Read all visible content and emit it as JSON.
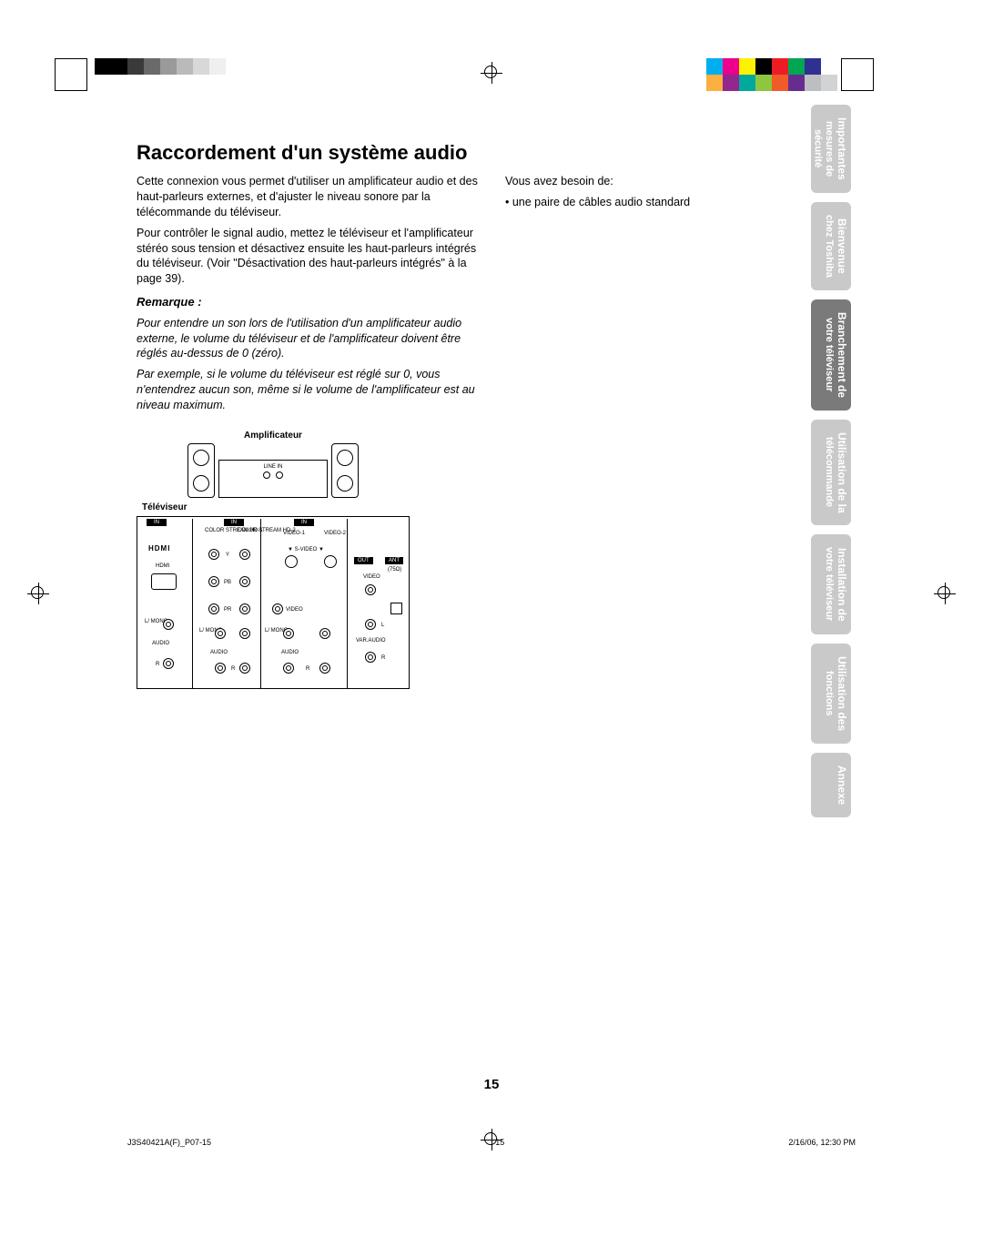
{
  "registration": {
    "gray_bars": [
      "#000000",
      "#000000",
      "#3a3a3a",
      "#6a6a6a",
      "#9a9a9a",
      "#bababa",
      "#d8d8d8",
      "#efefef",
      "#ffffff"
    ],
    "color_bars": [
      "#00aeef",
      "#ec008c",
      "#fff200",
      "#000000",
      "#ed1c24",
      "#00a651",
      "#2e3192",
      "#ffffff"
    ],
    "color_bars2": [
      "#fbb040",
      "#92278f",
      "#00a99d",
      "#8dc63f",
      "#f15a29",
      "#662d91",
      "#bcbec0",
      "#d1d3d4"
    ]
  },
  "title": "Raccordement d'un système audio",
  "col1": {
    "p1": "Cette connexion vous permet d'utiliser un amplificateur audio et des haut-parleurs externes, et d'ajuster le niveau sonore par la télécommande du téléviseur.",
    "p2": "Pour contrôler le signal audio, mettez le téléviseur et l'amplificateur stéréo sous tension et désactivez ensuite les haut-parleurs intégrés du téléviseur. (Voir \"Désactivation des haut-parleurs intégrés\" à la page 39).",
    "remarque_h": "Remarque :",
    "remarque1": "Pour entendre un son lors de l'utilisation d'un amplificateur audio externe, le volume du téléviseur et de l'amplificateur doivent être réglés au-dessus de 0 (zéro).",
    "remarque2": "Par exemple, si le volume du téléviseur est réglé sur 0, vous n'entendrez aucun son, même si le volume de l'amplificateur est au niveau maximum."
  },
  "col2": {
    "need": "Vous avez besoin de:",
    "item1": "• une paire de câbles audio standard"
  },
  "diagram": {
    "amp_label": "Amplificateur",
    "tv_label": "Téléviseur",
    "linein": "LINE IN",
    "labels": {
      "in": "IN",
      "hdmi": "HDMI",
      "hdmi_logo": "HDMI",
      "cs1": "COLOR\nSTREAM\nHD-1",
      "cs2": "COLOR\nSTREAM\nHD-2",
      "video1": "VIDEO-1",
      "video2": "VIDEO-2",
      "svideo": "▼  S-VIDEO  ▼",
      "video": "VIDEO",
      "y": "Y",
      "pb": "PB",
      "pr": "PR",
      "lmono": "L/\nMONO",
      "audio": "AUDIO",
      "r": "R",
      "l": "L",
      "out": "OUT",
      "ant": "ANT",
      "ohm": "(75Ω)",
      "varaudio": "VAR.AUDIO"
    }
  },
  "tabs": [
    {
      "l1": "Importantes",
      "l2": "mesures de",
      "l3": "sécurité",
      "active": false
    },
    {
      "l1": "Bienvenue",
      "l2": "chez Toshiba",
      "l3": "",
      "active": false
    },
    {
      "l1": "Branchement de",
      "l2": "votre téléviseur",
      "l3": "",
      "active": true
    },
    {
      "l1": "Utilisation de la",
      "l2": "télécommande",
      "l3": "",
      "active": false
    },
    {
      "l1": "Installation de",
      "l2": "votre téléviseur",
      "l3": "",
      "active": false
    },
    {
      "l1": "Utilisation des",
      "l2": "fonctions",
      "l3": "",
      "active": false
    },
    {
      "l1": "Annexe",
      "l2": "",
      "l3": "",
      "active": false
    }
  ],
  "page_number": "15",
  "footer": {
    "left": "J3S40421A(F)_P07-15",
    "mid": "15",
    "right": "2/16/06, 12:30 PM"
  }
}
